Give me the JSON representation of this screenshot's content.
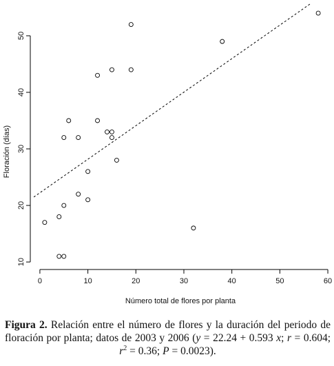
{
  "chart_data": {
    "type": "scatter",
    "x_label": "Número total de flores por planta",
    "y_label": "Floración (días)",
    "x": [
      1,
      4,
      4,
      5,
      5,
      5,
      6,
      8,
      8,
      10,
      10,
      12,
      12,
      14,
      15,
      15,
      15,
      16,
      19,
      19,
      32,
      38,
      58
    ],
    "values": [
      17,
      18,
      11,
      11,
      20,
      32,
      35,
      32,
      22,
      26,
      21,
      35,
      43,
      33,
      33,
      32,
      44,
      28,
      52,
      44,
      16,
      49,
      54
    ],
    "color": "#000000",
    "xlim": [
      -1.28,
      60.28
    ],
    "ylim": [
      9.28,
      55.72
    ],
    "xticks": [
      0,
      10,
      20,
      30,
      40,
      50,
      60
    ],
    "yticks": [
      10,
      20,
      30,
      40,
      50
    ],
    "trend_line": {
      "intercept": 22.24,
      "slope": 0.593
    }
  },
  "caption": [
    {
      "text": "Figura 2.",
      "style": "bold"
    },
    {
      "text": " Relación entre el número de flores y la duración del periodo de floración por planta; datos de 2003 y 2006 (",
      "style": "normal"
    },
    {
      "text": "y",
      "style": "italic"
    },
    {
      "text": " = 22.24 + 0.593 ",
      "style": "normal"
    },
    {
      "text": "x",
      "style": "italic"
    },
    {
      "text": "; ",
      "style": "normal"
    },
    {
      "text": "r",
      "style": "italic"
    },
    {
      "text": " = 0.604; ",
      "style": "normal"
    },
    {
      "text": "r",
      "style": "italic"
    },
    {
      "text": "2",
      "style": "sup"
    },
    {
      "text": " = 0.36; ",
      "style": "normal"
    },
    {
      "text": "P",
      "style": "italic"
    },
    {
      "text": " = 0.0023).",
      "style": "normal"
    }
  ]
}
